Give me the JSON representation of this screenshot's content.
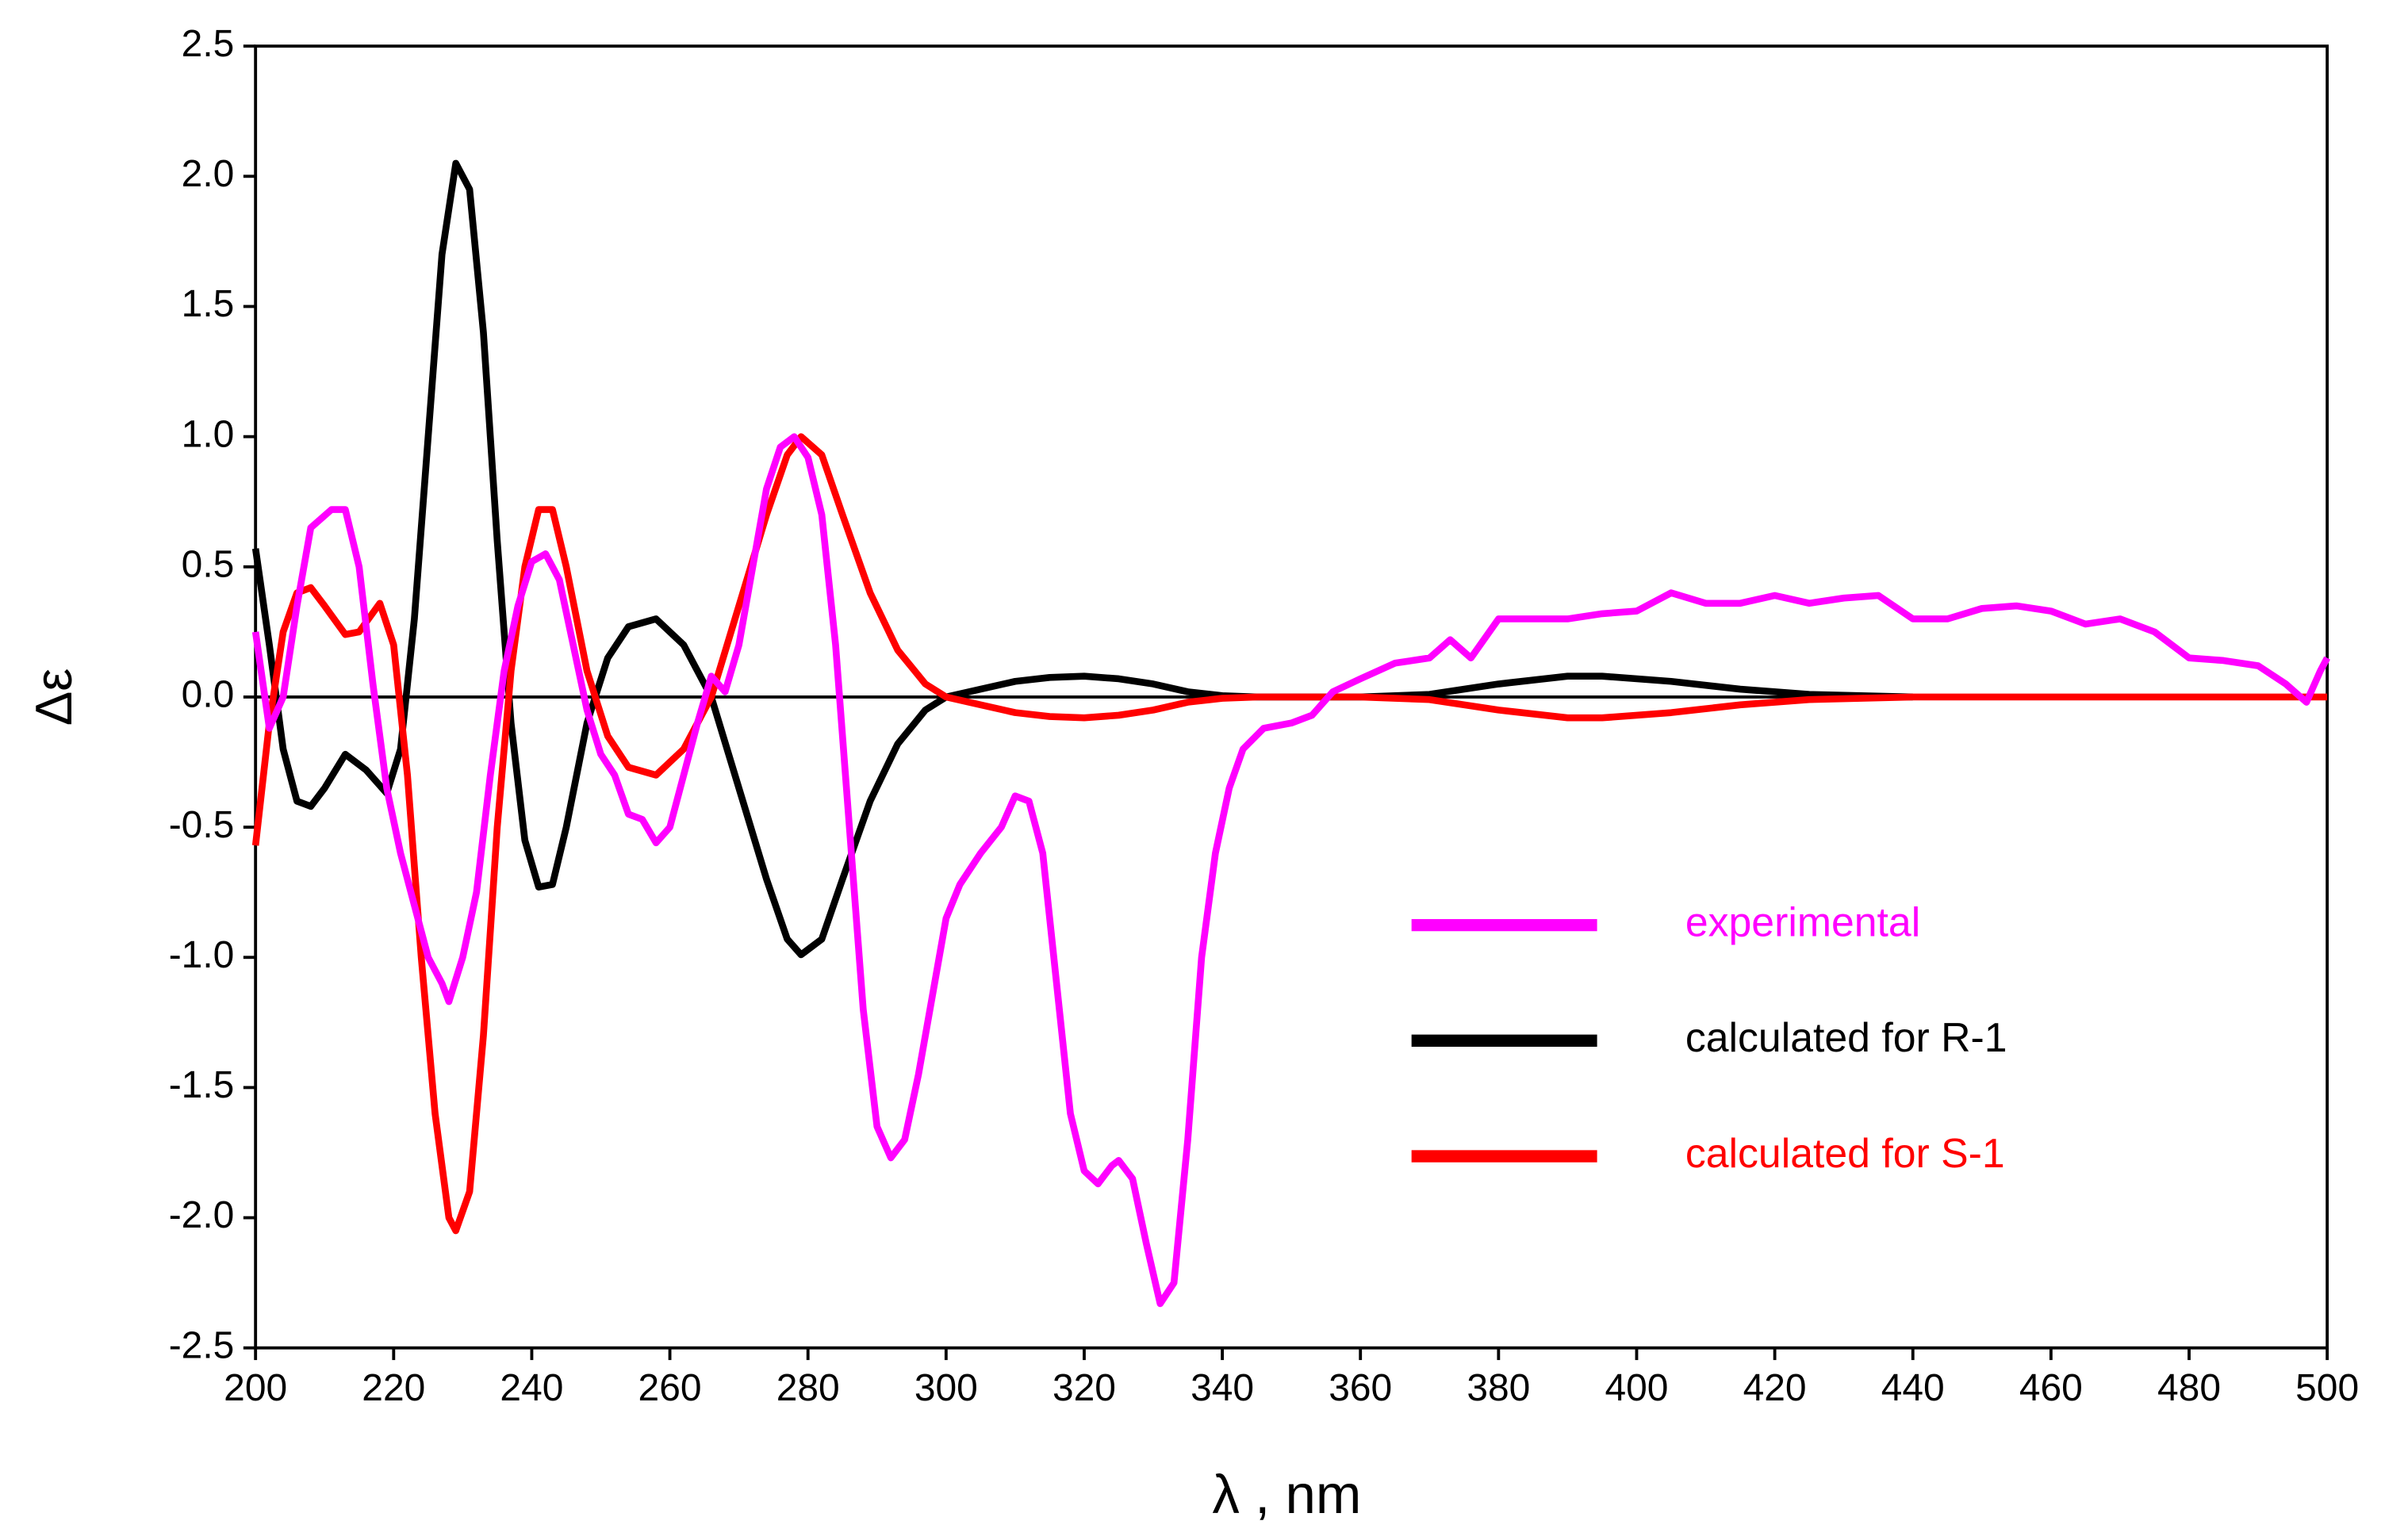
{
  "chart_data": {
    "type": "line",
    "xlabel": "λ , nm",
    "ylabel": "Δε",
    "xlim": [
      200,
      500
    ],
    "ylim": [
      -2.5,
      2.5
    ],
    "xticks": [
      200,
      220,
      240,
      260,
      280,
      300,
      320,
      340,
      360,
      380,
      400,
      420,
      440,
      460,
      480,
      500
    ],
    "yticks": [
      -2.5,
      {
        "value": -2,
        "label": "-2.0"
      },
      -1.5,
      {
        "value": -1,
        "label": "-1.0"
      },
      -0.5,
      {
        "value": 0,
        "label": "0.0"
      },
      0.5,
      {
        "value": 1,
        "label": "1.0"
      },
      1.5,
      {
        "value": 2,
        "label": "2.0"
      },
      2.5
    ],
    "legend": "lower right",
    "series": [
      {
        "name": "experimental",
        "color": "#ff00ff",
        "x": [
          200,
          202,
          204,
          206,
          208,
          211,
          213,
          215,
          217,
          219,
          221,
          223,
          225,
          227,
          228,
          230,
          232,
          234,
          236,
          238,
          240,
          242,
          244,
          246,
          248,
          250,
          252,
          254,
          256,
          258,
          260,
          262,
          264,
          266,
          268,
          270,
          272,
          274,
          276,
          278,
          280,
          282,
          284,
          286,
          288,
          290,
          292,
          294,
          296,
          298,
          300,
          302,
          305,
          308,
          310,
          312,
          314,
          316,
          318,
          320,
          322,
          324,
          325,
          327,
          329,
          331,
          333,
          335,
          337,
          339,
          341,
          343,
          346,
          350,
          353,
          356,
          360,
          365,
          370,
          373,
          376,
          380,
          385,
          390,
          395,
          400,
          405,
          410,
          415,
          420,
          425,
          430,
          435,
          440,
          445,
          450,
          455,
          460,
          465,
          470,
          475,
          480,
          485,
          490,
          494,
          497,
          499,
          500
        ],
        "values": [
          0.25,
          -0.12,
          0,
          0.35,
          0.65,
          0.72,
          0.72,
          0.5,
          0.05,
          -0.35,
          -0.6,
          -0.8,
          -1.0,
          -1.1,
          -1.17,
          -1.0,
          -0.75,
          -0.3,
          0.1,
          0.35,
          0.52,
          0.55,
          0.45,
          0.2,
          -0.05,
          -0.22,
          -0.3,
          -0.45,
          -0.47,
          -0.56,
          -0.5,
          -0.3,
          -0.1,
          0.08,
          0.02,
          0.2,
          0.5,
          0.8,
          0.96,
          1.0,
          0.92,
          0.7,
          0.2,
          -0.5,
          -1.2,
          -1.65,
          -1.77,
          -1.7,
          -1.45,
          -1.15,
          -0.85,
          -0.72,
          -0.6,
          -0.5,
          -0.38,
          -0.4,
          -0.6,
          -1.1,
          -1.6,
          -1.82,
          -1.87,
          -1.8,
          -1.78,
          -1.85,
          -2.1,
          -2.33,
          -2.25,
          -1.7,
          -1.0,
          -0.6,
          -0.35,
          -0.2,
          -0.12,
          -0.1,
          -0.07,
          0.02,
          0.07,
          0.13,
          0.15,
          0.22,
          0.15,
          0.3,
          0.3,
          0.3,
          0.32,
          0.33,
          0.4,
          0.36,
          0.36,
          0.39,
          0.36,
          0.38,
          0.39,
          0.3,
          0.3,
          0.34,
          0.35,
          0.33,
          0.28,
          0.3,
          0.25,
          0.15,
          0.14,
          0.12,
          0.05,
          -0.02,
          0.1,
          0.15
        ]
      },
      {
        "name": "calculated for R-1",
        "color": "#000000",
        "x": [
          200,
          202,
          204,
          206,
          208,
          210,
          213,
          216,
          219,
          221,
          223,
          225,
          227,
          229,
          231,
          233,
          235,
          237,
          239,
          241,
          243,
          245,
          248,
          251,
          254,
          258,
          262,
          266,
          270,
          274,
          277,
          279,
          282,
          285,
          289,
          293,
          297,
          300,
          305,
          310,
          315,
          320,
          325,
          330,
          335,
          340,
          345,
          360,
          370,
          380,
          390,
          395,
          405,
          415,
          425,
          440
        ],
        "values": [
          0.57,
          0.2,
          -0.2,
          -0.4,
          -0.42,
          -0.35,
          -0.22,
          -0.28,
          -0.37,
          -0.2,
          0.3,
          1.0,
          1.7,
          2.05,
          1.95,
          1.4,
          0.6,
          -0.1,
          -0.55,
          -0.73,
          -0.72,
          -0.5,
          -0.1,
          0.15,
          0.27,
          0.3,
          0.2,
          0,
          -0.35,
          -0.7,
          -0.93,
          -0.99,
          -0.93,
          -0.7,
          -0.4,
          -0.18,
          -0.05,
          0,
          0.03,
          0.06,
          0.075,
          0.08,
          0.07,
          0.05,
          0.02,
          0.005,
          0,
          0,
          0.01,
          0.05,
          0.08,
          0.08,
          0.06,
          0.03,
          0.01,
          0
        ]
      },
      {
        "name": "calculated for S-1",
        "color": "#ff0000",
        "x": [
          200,
          202,
          204,
          206,
          208,
          210,
          213,
          215,
          218,
          220,
          222,
          224,
          226,
          228,
          229,
          231,
          233,
          235,
          237,
          239,
          241,
          243,
          245,
          248,
          251,
          254,
          258,
          262,
          266,
          270,
          274,
          277,
          279,
          282,
          285,
          289,
          293,
          297,
          300,
          305,
          310,
          315,
          320,
          325,
          330,
          335,
          340,
          345,
          360,
          370,
          380,
          390,
          395,
          405,
          415,
          425,
          440,
          500
        ],
        "values": [
          -0.57,
          -0.1,
          0.25,
          0.4,
          0.42,
          0.35,
          0.24,
          0.25,
          0.36,
          0.2,
          -0.3,
          -1.0,
          -1.6,
          -2.0,
          -2.05,
          -1.9,
          -1.3,
          -0.5,
          0.1,
          0.5,
          0.72,
          0.72,
          0.5,
          0.1,
          -0.15,
          -0.27,
          -0.3,
          -0.2,
          0,
          0.35,
          0.7,
          0.93,
          1.0,
          0.93,
          0.7,
          0.4,
          0.18,
          0.05,
          0,
          -0.03,
          -0.06,
          -0.075,
          -0.08,
          -0.07,
          -0.05,
          -0.02,
          -0.005,
          0,
          0,
          -0.01,
          -0.05,
          -0.08,
          -0.08,
          -0.06,
          -0.03,
          -0.01,
          0,
          0
        ]
      }
    ]
  }
}
